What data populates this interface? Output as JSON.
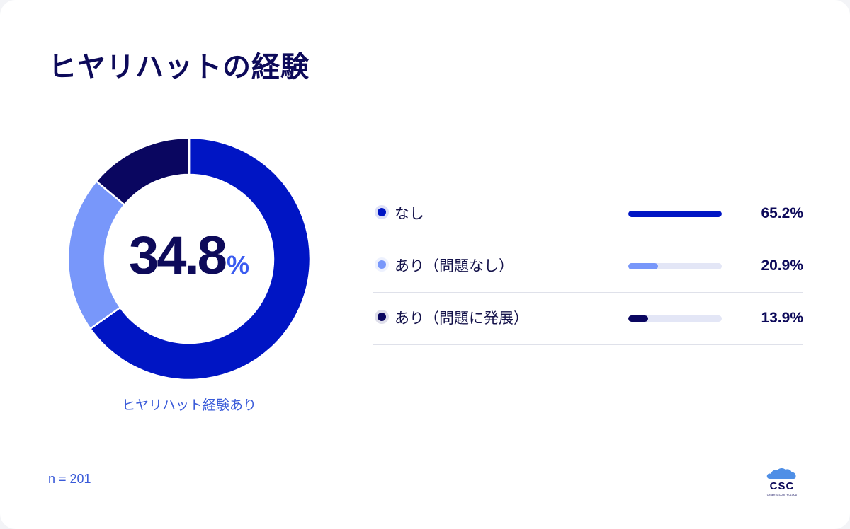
{
  "title": "ヒヤリハットの経験",
  "center": {
    "value": "34.8",
    "unit": "%",
    "caption": "ヒヤリハット経験あり"
  },
  "sample_note": "n = 201",
  "logo": {
    "text": "CSC",
    "subtext": "CYBER SECURITY CLOUD"
  },
  "colors": {
    "none": "#0015c4",
    "no_issue": "#7897fa",
    "issue": "#0a0660",
    "track": "#e3e6f6"
  },
  "chart_data": {
    "type": "pie",
    "title": "ヒヤリハットの経験",
    "series": [
      {
        "name": "なし",
        "value": 65.2,
        "label": "65.2%",
        "color": "#0015c4"
      },
      {
        "name": "あり（問題なし）",
        "value": 20.9,
        "label": "20.9%",
        "color": "#7897fa"
      },
      {
        "name": "あり（問題に発展）",
        "value": 13.9,
        "label": "13.9%",
        "color": "#0a0660"
      }
    ],
    "legend_position": "right"
  }
}
